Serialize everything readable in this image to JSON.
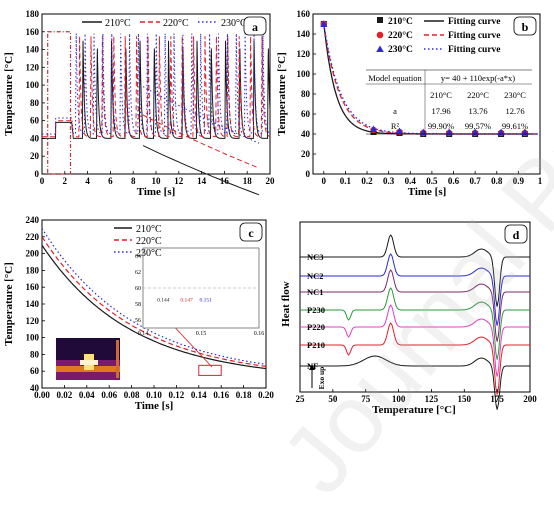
{
  "watermark": "Journal Pre-proof",
  "colors": {
    "c210": "#1a1a1a",
    "c220": "#e0202a",
    "c230": "#2a2adc",
    "box": "#c0303a",
    "grid": "#999999"
  },
  "chart_data": [
    {
      "panel": "a",
      "type": "line",
      "xlabel": "Time [s]",
      "ylabel": "Temperature [°C]",
      "xlim": [
        0,
        20
      ],
      "ylim": [
        0,
        180
      ],
      "xticks": [
        0,
        2,
        4,
        6,
        8,
        10,
        12,
        14,
        16,
        18,
        20
      ],
      "yticks": [
        0,
        20,
        40,
        60,
        80,
        100,
        120,
        140,
        160,
        180
      ],
      "legend": "top",
      "grid": false,
      "series": [
        {
          "name": "210°C",
          "style": "solid",
          "baseline": 40,
          "peak": 150,
          "first_peak_time": 3.6,
          "period": 1.25,
          "end_time": 20
        },
        {
          "name": "220°C",
          "style": "dashed",
          "baseline": 42,
          "peak": 155,
          "first_peak_time": 3.3,
          "period": 1.0,
          "end_time": 20
        },
        {
          "name": "230°C",
          "style": "dotted",
          "baseline": 45,
          "peak": 158,
          "first_peak_time": 3.0,
          "period": 0.78,
          "end_time": 20
        }
      ],
      "highlight_box": {
        "x": [
          0.5,
          2.5
        ],
        "y": [
          0,
          160
        ]
      }
    },
    {
      "panel": "b",
      "type": "scatter",
      "xlabel": "Time [s]",
      "ylabel": "Temperature [°C]",
      "xlim": [
        -0.05,
        1.0
      ],
      "ylim": [
        0,
        160
      ],
      "xticks": [
        0.0,
        0.1,
        0.2,
        0.3,
        0.4,
        0.5,
        0.6,
        0.7,
        0.8,
        0.9,
        1.0
      ],
      "yticks": [
        0,
        20,
        40,
        60,
        80,
        100,
        120,
        140,
        160
      ],
      "legend": "top-right",
      "fit_label": "Fitting curve",
      "x": [
        0.0,
        0.23,
        0.35,
        0.46,
        0.58,
        0.7,
        0.82,
        0.93
      ],
      "series": [
        {
          "name": "210°C",
          "marker": "square",
          "a": 17.96,
          "values": [
            150,
            42,
            41,
            40,
            40,
            40,
            40,
            40
          ]
        },
        {
          "name": "220°C",
          "marker": "circle",
          "a": 13.76,
          "values": [
            150,
            44,
            42,
            41,
            41,
            41,
            41,
            41
          ]
        },
        {
          "name": "230°C",
          "marker": "triangle",
          "a": 12.76,
          "values": [
            150,
            45,
            43,
            42,
            42,
            42,
            42,
            42
          ]
        }
      ],
      "table": {
        "header": [
          "Model equation",
          "y= 40 + 110exp(-a*x)"
        ],
        "columns": [
          "",
          "210°C",
          "220°C",
          "230°C"
        ],
        "rows": [
          [
            "a",
            "17.96",
            "13.76",
            "12.76"
          ],
          [
            "R²",
            "99.90%",
            "99.57%",
            "99.61%"
          ]
        ]
      }
    },
    {
      "panel": "c",
      "type": "line",
      "xlabel": "Time [s]",
      "ylabel": "Temperature [°C]",
      "xlim": [
        0.0,
        0.2
      ],
      "ylim": [
        40,
        240
      ],
      "xticks": [
        "0.00",
        "0.02",
        "0.04",
        "0.06",
        "0.08",
        "0.10",
        "0.12",
        "0.14",
        "0.16",
        "0.18",
        "0.20"
      ],
      "yticks": [
        40,
        60,
        80,
        100,
        120,
        140,
        160,
        180,
        200,
        220,
        240
      ],
      "legend": "top-center",
      "series": [
        {
          "name": "210°C",
          "style": "solid",
          "start": 210,
          "end": 50,
          "k": 12.5
        },
        {
          "name": "220°C",
          "style": "dashed",
          "start": 220,
          "end": 51,
          "k": 12.2
        },
        {
          "name": "230°C",
          "style": "dotted",
          "start": 230,
          "end": 52,
          "k": 12.0
        }
      ],
      "inset": {
        "xlim": [
          0.14,
          0.16
        ],
        "ylim": [
          55,
          65
        ],
        "xticks": [
          "0.14",
          "0.15",
          "0.16"
        ],
        "yticks": [
          "56",
          "58",
          "60",
          "62",
          "64"
        ],
        "labels": [
          "0.144",
          "0.147",
          "0.151"
        ]
      },
      "zoom_box": {
        "x": [
          0.14,
          0.16
        ],
        "y": [
          55,
          67
        ]
      }
    },
    {
      "panel": "d",
      "type": "line",
      "xlabel": "Temperature [°C]",
      "ylabel": "Heat flow",
      "xlim": [
        25,
        200
      ],
      "xticks": [
        25,
        50,
        75,
        100,
        125,
        150,
        175,
        200
      ],
      "arrow_label": "Exo up",
      "series": [
        {
          "name": "NC3",
          "color": "#1a1a1a"
        },
        {
          "name": "NC2",
          "color": "#2a2adc"
        },
        {
          "name": "NC1",
          "color": "#7a2a6a"
        },
        {
          "name": "P230",
          "color": "#2a9a3a"
        },
        {
          "name": "P220",
          "color": "#e040c0"
        },
        {
          "name": "P210",
          "color": "#e0202a"
        },
        {
          "name": "NF",
          "color": "#1a1a1a"
        }
      ]
    }
  ]
}
